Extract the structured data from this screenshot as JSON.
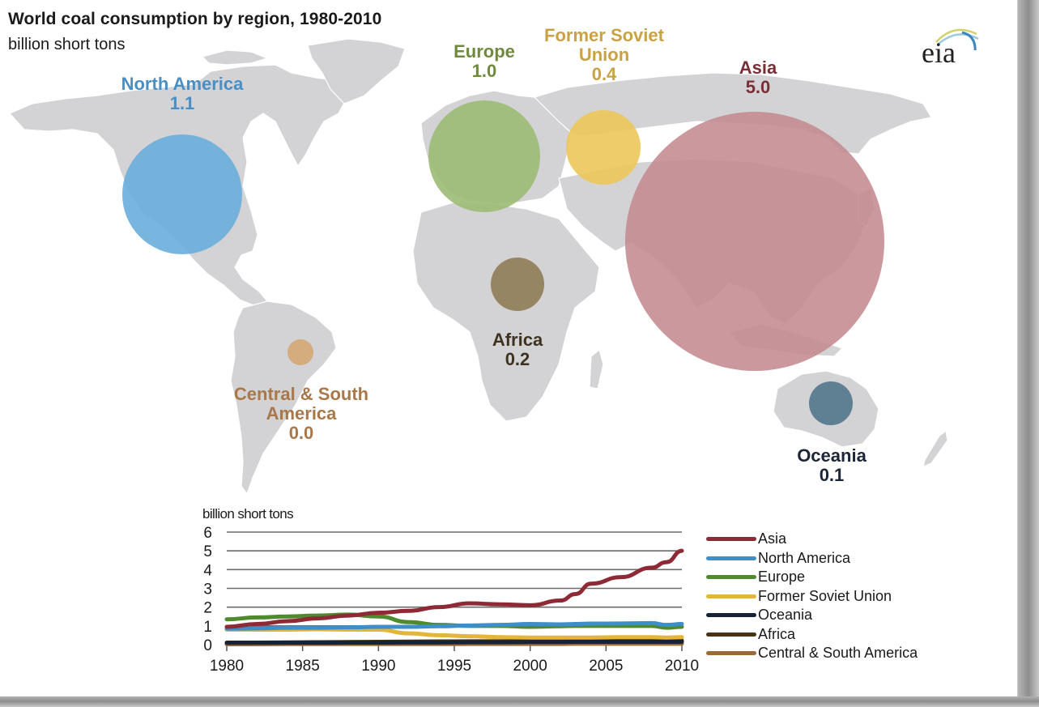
{
  "title": "World coal consumption by region, 1980-2010",
  "subtitle": "billion short tons",
  "logo": "eia",
  "map_bubbles": [
    {
      "region": "North America",
      "value": "1.1",
      "color": "#6aaedc",
      "label_color": "#4a8fc4"
    },
    {
      "region": "Europe",
      "value": "1.0",
      "color": "#9cbb74",
      "label_color": "#6f8a3e"
    },
    {
      "region": "Former Soviet Union",
      "label_line1": "Former Soviet",
      "label_line2": "Union",
      "value": "0.4",
      "color": "#ecc75a",
      "label_color": "#c8a245"
    },
    {
      "region": "Asia",
      "value": "5.0",
      "color": "#c48a90",
      "label_color": "#7a2e36"
    },
    {
      "region": "Africa",
      "value": "0.2",
      "color": "#8f7c55",
      "label_color": "#3d3320"
    },
    {
      "region": "Central & South America",
      "label_line1": "Central & South",
      "label_line2": "America",
      "value": "0.0",
      "color": "#d4a774",
      "label_color": "#a8784a"
    },
    {
      "region": "Oceania",
      "value": "0.1",
      "color": "#587a8e",
      "label_color": "#1c2638"
    }
  ],
  "chart_data": {
    "type": "line",
    "title": "World coal consumption by region, 1980-2010",
    "ylabel": "billion short tons",
    "xlabel": "",
    "xlim": [
      1980,
      2010
    ],
    "ylim": [
      0,
      6
    ],
    "x_ticks": [
      "1980",
      "1985",
      "1990",
      "1995",
      "2000",
      "2005",
      "2010"
    ],
    "y_ticks": [
      "0",
      "1",
      "2",
      "3",
      "4",
      "5",
      "6"
    ],
    "grid": true,
    "legend_position": "right",
    "x": [
      1980,
      1982,
      1984,
      1986,
      1988,
      1990,
      1992,
      1994,
      1996,
      1998,
      2000,
      2002,
      2003,
      2004,
      2006,
      2008,
      2009,
      2010
    ],
    "series": [
      {
        "name": "Asia",
        "color": "#8e2a35",
        "values": [
          0.95,
          1.1,
          1.25,
          1.4,
          1.55,
          1.7,
          1.8,
          2.0,
          2.2,
          2.15,
          2.1,
          2.35,
          2.7,
          3.25,
          3.6,
          4.1,
          4.4,
          5.0
        ]
      },
      {
        "name": "North America",
        "color": "#3d8ec9",
        "values": [
          0.85,
          0.87,
          0.9,
          0.9,
          0.92,
          0.95,
          0.95,
          0.98,
          1.02,
          1.05,
          1.1,
          1.08,
          1.1,
          1.12,
          1.13,
          1.15,
          1.05,
          1.1
        ]
      },
      {
        "name": "Europe",
        "color": "#4f8a2e",
        "values": [
          1.35,
          1.45,
          1.5,
          1.55,
          1.6,
          1.5,
          1.2,
          1.05,
          1.0,
          1.0,
          0.95,
          0.98,
          1.0,
          1.0,
          1.0,
          1.0,
          0.9,
          0.95
        ]
      },
      {
        "name": "Former Soviet Union",
        "color": "#e3b53a",
        "values": [
          0.8,
          0.8,
          0.8,
          0.82,
          0.8,
          0.8,
          0.6,
          0.5,
          0.45,
          0.4,
          0.38,
          0.38,
          0.38,
          0.38,
          0.4,
          0.4,
          0.38,
          0.4
        ]
      },
      {
        "name": "Oceania",
        "color": "#152238",
        "values": [
          0.1,
          0.1,
          0.1,
          0.1,
          0.11,
          0.11,
          0.12,
          0.12,
          0.13,
          0.13,
          0.14,
          0.14,
          0.15,
          0.15,
          0.15,
          0.15,
          0.15,
          0.15
        ]
      },
      {
        "name": "Africa",
        "color": "#4a3216",
        "values": [
          0.1,
          0.11,
          0.12,
          0.13,
          0.14,
          0.15,
          0.16,
          0.17,
          0.18,
          0.18,
          0.19,
          0.19,
          0.2,
          0.2,
          0.2,
          0.21,
          0.21,
          0.22
        ]
      },
      {
        "name": "Central & South America",
        "color": "#9c6a38",
        "values": [
          0.02,
          0.02,
          0.03,
          0.03,
          0.03,
          0.03,
          0.03,
          0.03,
          0.04,
          0.04,
          0.04,
          0.04,
          0.05,
          0.05,
          0.05,
          0.05,
          0.05,
          0.05
        ]
      }
    ]
  }
}
